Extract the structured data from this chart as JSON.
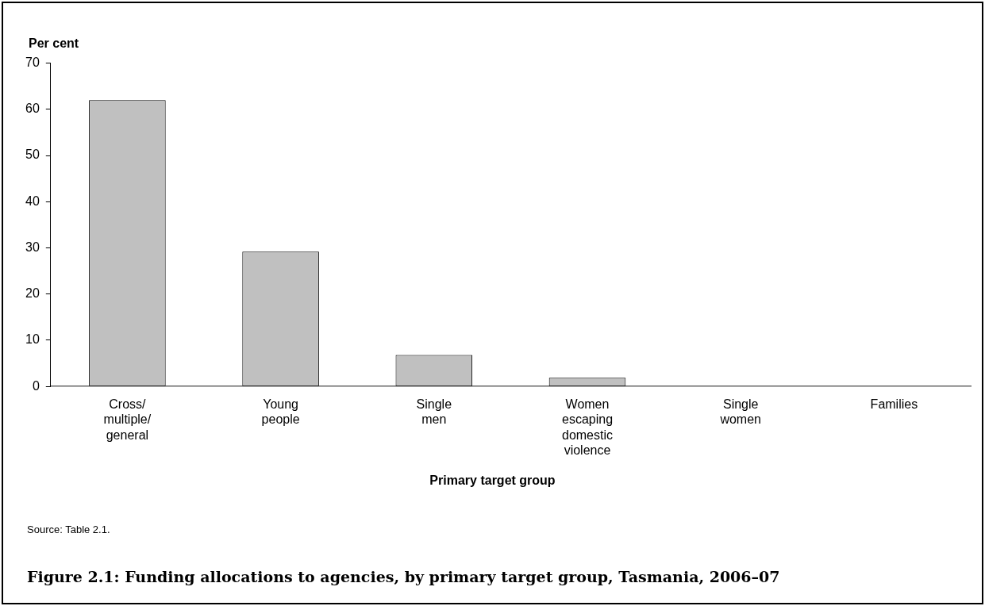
{
  "chart_data": {
    "type": "bar",
    "title": "Figure 2.1: Funding allocations to agencies, by primary target group, Tasmania, 2006–07",
    "ylabel": "Per cent",
    "xlabel": "Primary target group",
    "annotations": [
      "Source: Table 2.1."
    ],
    "categories": [
      "Cross/ multiple/ general",
      "Young people",
      "Single men",
      "Women escaping domestic violence",
      "Single women",
      "Families"
    ],
    "values": [
      62,
      29.2,
      6.8,
      1.9,
      0,
      0
    ],
    "color": "#c0c0c0",
    "ylim": [
      0,
      70
    ],
    "yticks": [
      0,
      10,
      20,
      30,
      40,
      50,
      60,
      70
    ],
    "grid": false,
    "legend": false
  }
}
